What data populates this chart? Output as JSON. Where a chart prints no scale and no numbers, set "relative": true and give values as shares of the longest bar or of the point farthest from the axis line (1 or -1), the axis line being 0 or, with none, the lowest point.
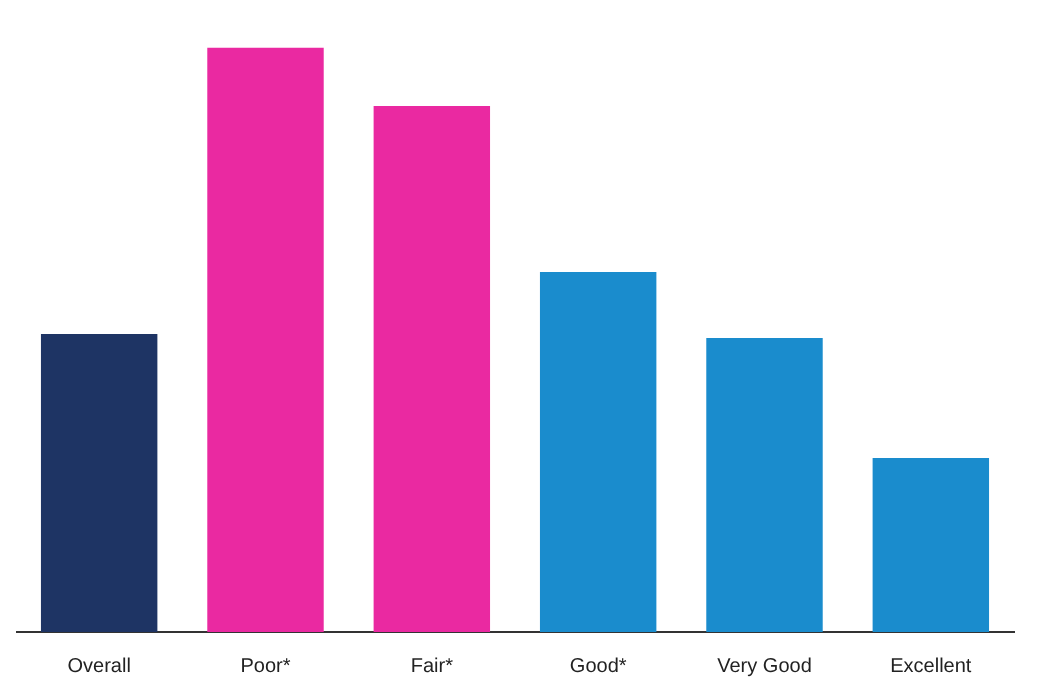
{
  "chart_data": {
    "type": "bar",
    "categories": [
      "Overall",
      "Poor*",
      "Fair*",
      "Good*",
      "Very Good",
      "Excellent"
    ],
    "values": [
      0.51,
      1,
      0.9,
      0.616,
      0.503,
      0.298
    ],
    "colors": [
      "#1e3464",
      "#ea29a1",
      "#ea29a1",
      "#1a8ccd",
      "#1a8ccd",
      "#1a8ccd"
    ],
    "relative": true,
    "legend": false
  }
}
